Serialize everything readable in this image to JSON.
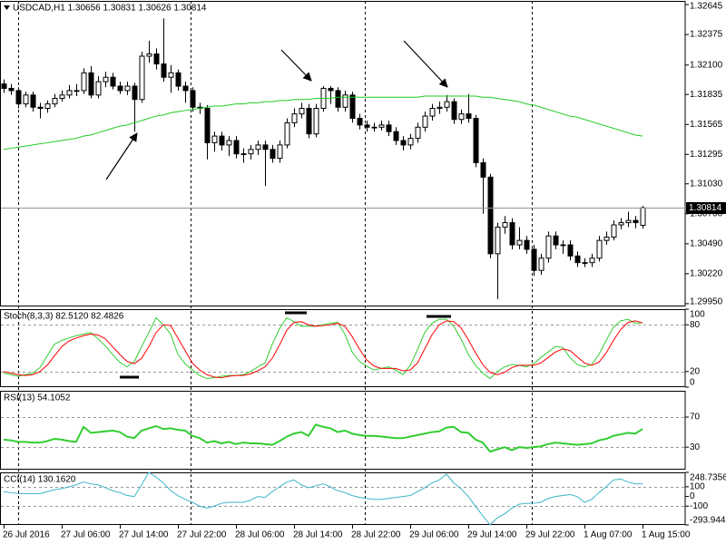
{
  "chart_data": [
    {
      "type": "candlestick",
      "title": "USDCAD,H1 1.30656 1.30831 1.30626 1.30814",
      "categories": [
        "26 Jul 2016",
        null,
        null,
        null,
        null,
        null,
        null,
        null,
        "27 Jul 06:00",
        null,
        null,
        null,
        null,
        null,
        null,
        null,
        "27 Jul 14:00",
        null,
        null,
        null,
        null,
        null,
        null,
        null,
        "27 Jul 22:00",
        null,
        null,
        null,
        null,
        null,
        null,
        null,
        "28 Jul 06:00",
        null,
        null,
        null,
        null,
        null,
        null,
        null,
        "28 Jul 14:00",
        null,
        null,
        null,
        null,
        null,
        null,
        null,
        "28 Jul 22:00",
        null,
        null,
        null,
        null,
        null,
        null,
        null,
        "29 Jul 06:00",
        null,
        null,
        null,
        null,
        null,
        null,
        null,
        "29 Jul 14:00",
        null,
        null,
        null,
        null,
        null,
        null,
        null,
        "29 Jul 22:00",
        null,
        null,
        null,
        null,
        null,
        null,
        null,
        "1 Aug 07:00",
        null,
        null,
        null,
        null,
        null,
        null,
        null,
        "1 Aug 15:00"
      ],
      "open": [
        1.3193,
        1.3189,
        1.3187,
        1.3175,
        1.3183,
        1.3172,
        1.3171,
        1.3175,
        1.318,
        1.3183,
        1.3187,
        1.3187,
        1.3203,
        1.3183,
        1.3195,
        1.3199,
        1.3191,
        1.3187,
        1.3191,
        1.3179,
        1.3218,
        1.322,
        1.3211,
        1.3199,
        1.3203,
        1.3191,
        1.3187,
        1.3172,
        1.3171,
        1.314,
        1.3146,
        1.3138,
        1.3142,
        1.313,
        1.313,
        1.3134,
        1.3138,
        1.3134,
        1.3126,
        1.3138,
        1.3158,
        1.3166,
        1.3171,
        1.3148,
        1.3171,
        1.3189,
        1.3187,
        1.3172,
        1.3183,
        1.3162,
        1.3156,
        1.3154,
        1.3154,
        1.3156,
        1.315,
        1.3142,
        1.3138,
        1.3144,
        1.3154,
        1.3164,
        1.3171,
        1.3172,
        1.3177,
        1.3161,
        1.3166,
        1.3162,
        1.3122,
        1.3109,
        1.304,
        1.3064,
        1.3068,
        1.3048,
        1.3052,
        1.3044,
        1.3025,
        1.3036,
        1.3056,
        1.3048,
        1.3048,
        1.3038,
        1.3032,
        1.3032,
        1.3036,
        1.3052,
        1.3055,
        1.3066,
        1.3068,
        1.307,
        1.30656
      ],
      "high": [
        1.3197,
        1.3193,
        1.319,
        1.3186,
        1.3186,
        1.3176,
        1.3178,
        1.3184,
        1.3187,
        1.3192,
        1.3193,
        1.3207,
        1.3209,
        1.32,
        1.3204,
        1.3203,
        1.3195,
        1.3195,
        1.3194,
        1.3222,
        1.3232,
        1.3225,
        1.3252,
        1.321,
        1.3206,
        1.3195,
        1.319,
        1.3176,
        1.3174,
        1.315,
        1.315,
        1.3146,
        1.3146,
        1.3135,
        1.3138,
        1.3142,
        1.3142,
        1.3138,
        1.3142,
        1.3162,
        1.3171,
        1.3176,
        1.3175,
        1.3175,
        1.3191,
        1.3191,
        1.319,
        1.3187,
        1.3186,
        1.3166,
        1.316,
        1.3158,
        1.316,
        1.316,
        1.3154,
        1.3146,
        1.3148,
        1.3158,
        1.3168,
        1.3175,
        1.3177,
        1.3183,
        1.318,
        1.317,
        1.3184,
        1.3165,
        1.3126,
        1.3112,
        1.3068,
        1.3074,
        1.3072,
        1.3064,
        1.3056,
        1.3048,
        1.304,
        1.306,
        1.306,
        1.3052,
        1.3052,
        1.3042,
        1.3036,
        1.304,
        1.3056,
        1.306,
        1.307,
        1.3072,
        1.3078,
        1.3074,
        1.30831
      ],
      "low": [
        1.3185,
        1.3183,
        1.3171,
        1.3172,
        1.3168,
        1.3162,
        1.3167,
        1.3172,
        1.3177,
        1.318,
        1.3182,
        1.3184,
        1.318,
        1.318,
        1.319,
        1.3188,
        1.3184,
        1.3183,
        1.315,
        1.3176,
        1.3212,
        1.3206,
        1.3195,
        1.3185,
        1.3187,
        1.3176,
        1.3168,
        1.3166,
        1.3125,
        1.3132,
        1.3133,
        1.3128,
        1.3126,
        1.3122,
        1.3125,
        1.3129,
        1.3101,
        1.3122,
        1.3122,
        1.3135,
        1.3154,
        1.3162,
        1.3144,
        1.3145,
        1.3168,
        1.3175,
        1.3168,
        1.3168,
        1.3158,
        1.3152,
        1.315,
        1.315,
        1.3151,
        1.3146,
        1.3138,
        1.3133,
        1.3134,
        1.314,
        1.315,
        1.316,
        1.3166,
        1.3168,
        1.3157,
        1.3157,
        1.3158,
        1.3118,
        1.3076,
        1.3036,
        1.2999,
        1.3058,
        1.3044,
        1.3044,
        1.304,
        1.302,
        1.3021,
        1.3032,
        1.3044,
        1.304,
        1.3034,
        1.3028,
        1.3028,
        1.3028,
        1.3033,
        1.3048,
        1.3052,
        1.3062,
        1.3064,
        1.3063,
        1.30626
      ],
      "close": [
        1.3189,
        1.3187,
        1.3175,
        1.3183,
        1.3172,
        1.3171,
        1.3175,
        1.318,
        1.3183,
        1.3187,
        1.3187,
        1.3203,
        1.3183,
        1.3195,
        1.3199,
        1.3191,
        1.3187,
        1.3191,
        1.3179,
        1.3218,
        1.322,
        1.3211,
        1.3199,
        1.3203,
        1.3191,
        1.3187,
        1.3172,
        1.3171,
        1.314,
        1.3146,
        1.3138,
        1.3142,
        1.313,
        1.313,
        1.3134,
        1.3138,
        1.3134,
        1.3126,
        1.3138,
        1.3158,
        1.3166,
        1.3171,
        1.3148,
        1.3171,
        1.3189,
        1.3187,
        1.3172,
        1.3183,
        1.3162,
        1.3156,
        1.3154,
        1.3154,
        1.3156,
        1.315,
        1.3142,
        1.3138,
        1.3144,
        1.3154,
        1.3164,
        1.3171,
        1.3172,
        1.3177,
        1.3161,
        1.3166,
        1.3162,
        1.3122,
        1.3109,
        1.304,
        1.3064,
        1.3068,
        1.3048,
        1.3052,
        1.3044,
        1.3025,
        1.3036,
        1.3056,
        1.3048,
        1.3048,
        1.3038,
        1.3032,
        1.3032,
        1.3036,
        1.3052,
        1.3055,
        1.3066,
        1.3068,
        1.307,
        1.3068,
        1.30814
      ],
      "overlays": [
        {
          "color": "#22cc22",
          "values": [
            1.3134,
            1.3135,
            1.3136,
            1.3137,
            1.3138,
            1.3139,
            1.314,
            1.3141,
            1.3142,
            1.3143,
            1.3144,
            1.3146,
            1.3147,
            1.3149,
            1.3151,
            1.3153,
            1.3155,
            1.3156,
            1.3158,
            1.316,
            1.3162,
            1.3164,
            1.3165,
            1.3167,
            1.3168,
            1.3169,
            1.317,
            1.3171,
            1.3172,
            1.3173,
            1.3173,
            1.3174,
            1.3175,
            1.3175,
            1.3176,
            1.3176,
            1.3177,
            1.3177,
            1.3178,
            1.3178,
            1.3179,
            1.3179,
            1.3179,
            1.318,
            1.318,
            1.318,
            1.3181,
            1.3181,
            1.3181,
            1.3181,
            1.3181,
            1.3181,
            1.3181,
            1.3181,
            1.3181,
            1.3181,
            1.3181,
            1.3181,
            1.3182,
            1.3182,
            1.3182,
            1.3182,
            1.3182,
            1.3182,
            1.3182,
            1.3182,
            1.3181,
            1.3181,
            1.318,
            1.3179,
            1.3178,
            1.3177,
            1.3175,
            1.3174,
            1.3172,
            1.317,
            1.3168,
            1.3166,
            1.3164,
            1.3163,
            1.3161,
            1.3159,
            1.3157,
            1.3155,
            1.3153,
            1.3151,
            1.3149,
            1.3147,
            1.3146
          ]
        }
      ],
      "colors": {
        "up": "#ffffff",
        "down": "#000000",
        "wick": "#000000"
      },
      "price_line": true,
      "ylim": [
        1.29925,
        1.32678
      ],
      "yticks": [
        1.32645,
        1.32375,
        {
          "value": 1.321,
          "label": "1.32100"
        },
        1.31835,
        1.31565,
        1.31295,
        {
          "value": 1.3103,
          "label": "1.31030"
        },
        {
          "value": 1.3076,
          "label": "1.30760"
        },
        {
          "value": 1.3049,
          "label": "1.30490"
        },
        {
          "value": 1.3022,
          "label": "1.30220"
        },
        {
          "value": 1.2995,
          "label": "1.29950"
        }
      ]
    },
    {
      "type": "line",
      "title": "Stoch(8,3,3) 82.5120 82.4826",
      "series": [
        {
          "color": "#32cd32",
          "values": [
            18,
            16,
            14,
            16,
            18,
            25,
            40,
            55,
            60,
            63,
            66,
            68,
            70,
            62,
            53,
            42,
            32,
            26,
            33,
            52,
            70,
            89,
            80,
            68,
            42,
            30,
            22,
            15,
            11,
            12,
            14,
            15,
            15,
            16,
            20,
            26,
            31,
            55,
            75,
            89,
            84,
            78,
            78,
            78,
            80,
            82,
            83,
            68,
            45,
            33,
            27,
            22,
            24,
            26,
            22,
            16,
            28,
            48,
            70,
            82,
            87,
            87,
            78,
            62,
            42,
            28,
            18,
            11,
            20,
            26,
            29,
            28,
            26,
            30,
            38,
            45,
            52,
            51,
            38,
            29,
            26,
            29,
            42,
            60,
            77,
            85,
            87,
            82,
            82.512
          ]
        },
        {
          "color": "#ff0000",
          "values": [
            20,
            18,
            16,
            15,
            16,
            20,
            28,
            40,
            52,
            59,
            63,
            66,
            68,
            67,
            62,
            52,
            42,
            33,
            30,
            37,
            52,
            70,
            80,
            79,
            63,
            47,
            31,
            22,
            16,
            13,
            12,
            14,
            15,
            15,
            17,
            21,
            26,
            37,
            54,
            73,
            83,
            84,
            80,
            78,
            79,
            80,
            82,
            78,
            65,
            49,
            35,
            27,
            24,
            24,
            24,
            21,
            22,
            31,
            49,
            67,
            80,
            85,
            84,
            76,
            61,
            44,
            29,
            19,
            16,
            19,
            25,
            28,
            28,
            28,
            31,
            38,
            45,
            49,
            47,
            39,
            31,
            28,
            32,
            44,
            60,
            74,
            83,
            85,
            82.4826
          ]
        }
      ],
      "line_width": 1,
      "ylim": [
        0,
        100
      ],
      "yticks": [
        0,
        20,
        80,
        100
      ],
      "levels": [
        20,
        80
      ]
    },
    {
      "type": "line",
      "title": "RSI(13) 54.1052",
      "series": [
        {
          "color": "#32cd32",
          "values": [
            40,
            39,
            37,
            37,
            36,
            36,
            38,
            41,
            40,
            38,
            37,
            57,
            49,
            50,
            51,
            52,
            50,
            44,
            42,
            52,
            55,
            58,
            54,
            55,
            53,
            52,
            45,
            42,
            36,
            38,
            35,
            37,
            34,
            36,
            35,
            35,
            34,
            33,
            38,
            44,
            48,
            50,
            45,
            60,
            57,
            55,
            50,
            52,
            48,
            46,
            45,
            45,
            44,
            43,
            42,
            42,
            44,
            46,
            48,
            50,
            51,
            56,
            57,
            50,
            49,
            40,
            36,
            24,
            27,
            30,
            26,
            30,
            29,
            30,
            31,
            34,
            36,
            35,
            34,
            33,
            34,
            35,
            39,
            41,
            45,
            47,
            49,
            48,
            54.1052
          ]
        }
      ],
      "line_width": 2,
      "ylim": [
        0,
        105
      ],
      "yticks": [
        30,
        70
      ],
      "levels": [
        30,
        70
      ]
    },
    {
      "type": "line",
      "title": "CCI(14) 130.1620",
      "series": [
        {
          "color": "#3cb4c8",
          "values": [
            50,
            40,
            30,
            30,
            30,
            30,
            50,
            70,
            80,
            100,
            120,
            150,
            130,
            120,
            90,
            60,
            40,
            10,
            0,
            120,
            248.7356,
            200,
            140,
            60,
            10,
            -30,
            -60,
            -100,
            -120,
            -100,
            -70,
            -60,
            -60,
            -60,
            -40,
            0,
            -10,
            50,
            100,
            150,
            170,
            120,
            90,
            110,
            130,
            100,
            60,
            40,
            10,
            -10,
            -20,
            -30,
            -30,
            -20,
            -10,
            0,
            10,
            50,
            90,
            140,
            170,
            230,
            140,
            80,
            0,
            -100,
            -200,
            -293.9443,
            -220,
            -180,
            -120,
            -80,
            -70,
            -70,
            -60,
            -20,
            0,
            10,
            20,
            0,
            -60,
            -30,
            40,
            100,
            170,
            180,
            150,
            130,
            130.162
          ]
        }
      ],
      "line_width": 1,
      "ylim": [
        -293.9443,
        248.7356
      ],
      "yticks": [
        248.7356,
        100,
        0,
        -100,
        -293.9443
      ],
      "levels": [
        100,
        -100
      ]
    }
  ]
}
